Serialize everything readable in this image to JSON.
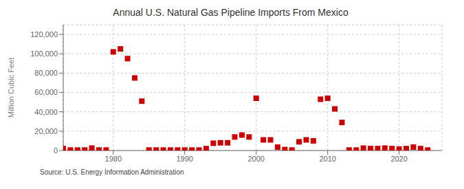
{
  "chart_data": {
    "type": "scatter",
    "title": "Annual U.S. Natural Gas Pipeline Imports From Mexico",
    "ylabel": "Million Cubic Feet",
    "annotations": [
      "Source: U.S. Energy Information Administration"
    ],
    "color": "#cc0000",
    "marker": "square",
    "grid": true,
    "xlim": [
      1973,
      2026
    ],
    "ylim": [
      0,
      130000
    ],
    "xticks": [
      1980,
      1990,
      2000,
      2010,
      2020
    ],
    "yticks": [
      0,
      {
        "value": 20000,
        "label": "20,000"
      },
      {
        "value": 40000,
        "label": "40,000"
      },
      {
        "value": 60000,
        "label": "60,000"
      },
      {
        "value": 80000,
        "label": "80,000"
      },
      {
        "value": 100000,
        "label": "100,000"
      },
      {
        "value": 120000,
        "label": "120,000"
      }
    ],
    "x": [
      1973,
      1974,
      1975,
      1976,
      1977,
      1978,
      1979,
      1980,
      1981,
      1982,
      1983,
      1984,
      1985,
      1986,
      1987,
      1988,
      1989,
      1990,
      1991,
      1992,
      1993,
      1994,
      1995,
      1996,
      1997,
      1998,
      1999,
      2000,
      2001,
      2002,
      2003,
      2004,
      2005,
      2006,
      2007,
      2008,
      2009,
      2010,
      2011,
      2012,
      2013,
      2014,
      2015,
      2016,
      2017,
      2018,
      2019,
      2020,
      2021,
      2022,
      2023,
      2024
    ],
    "values": [
      2000,
      500,
      500,
      500,
      2500,
      500,
      500,
      102000,
      105000,
      95000,
      75000,
      51000,
      500,
      500,
      500,
      500,
      500,
      500,
      500,
      500,
      2000,
      7500,
      8000,
      8000,
      14000,
      16000,
      14000,
      54000,
      11000,
      11000,
      3500,
      1000,
      500,
      9000,
      11000,
      10000,
      53000,
      54000,
      43000,
      29000,
      500,
      500,
      2500,
      2000,
      2000,
      2500,
      2000,
      1500,
      2000,
      3500,
      2000,
      500
    ]
  }
}
